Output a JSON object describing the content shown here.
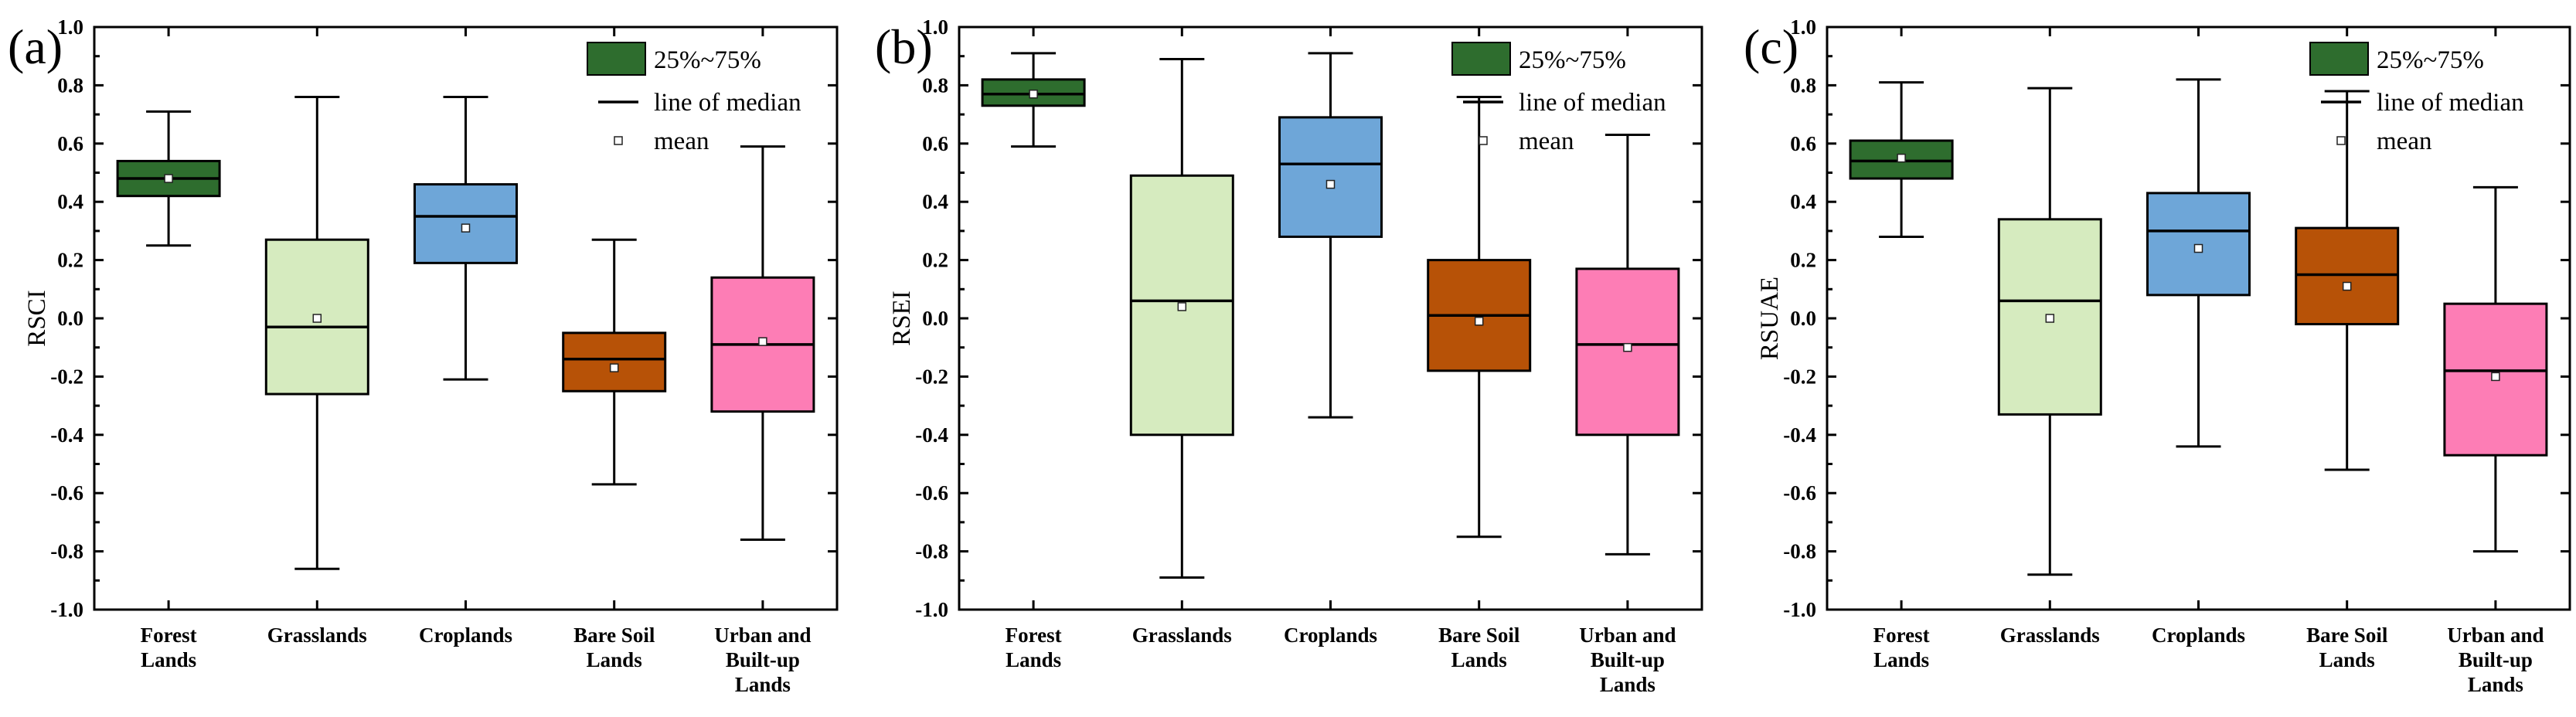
{
  "legend": {
    "box_label": "25%~75%",
    "median_label": "line of median",
    "mean_label": "mean"
  },
  "colors": {
    "Forest Lands": "#2e6d2e",
    "Grasslands": "#d6ebbf",
    "Croplands": "#6ea6d8",
    "Bare Soil Lands": "#b75207",
    "Urban and Built-up Lands": "#fd7db5"
  },
  "chart_data": [
    {
      "type": "box",
      "panel_label": "(a)",
      "ylabel": "RSCI",
      "ylim": [
        -1.0,
        1.0
      ],
      "yticks": [
        "-1.0",
        "-0.8",
        "-0.6",
        "-0.4",
        "-0.2",
        "0.0",
        "0.2",
        "0.4",
        "0.6",
        "0.8",
        "1.0"
      ],
      "categories": [
        [
          "Forest",
          "Lands"
        ],
        [
          "Grasslands"
        ],
        [
          "Croplands"
        ],
        [
          "Bare Soil",
          "Lands"
        ],
        [
          "Urban and",
          "Built-up",
          "Lands"
        ]
      ],
      "series": [
        {
          "name": "Forest Lands",
          "min": 0.25,
          "q1": 0.42,
          "median": 0.48,
          "q3": 0.54,
          "max": 0.71,
          "mean": 0.48
        },
        {
          "name": "Grasslands",
          "min": -0.86,
          "q1": -0.26,
          "median": -0.03,
          "q3": 0.27,
          "max": 0.76,
          "mean": 0.0
        },
        {
          "name": "Croplands",
          "min": -0.21,
          "q1": 0.19,
          "median": 0.35,
          "q3": 0.46,
          "max": 0.76,
          "mean": 0.31
        },
        {
          "name": "Bare Soil Lands",
          "min": -0.57,
          "q1": -0.25,
          "median": -0.14,
          "q3": -0.05,
          "max": 0.27,
          "mean": -0.17
        },
        {
          "name": "Urban and Built-up Lands",
          "min": -0.76,
          "q1": -0.32,
          "median": -0.09,
          "q3": 0.14,
          "max": 0.59,
          "mean": -0.08
        }
      ]
    },
    {
      "type": "box",
      "panel_label": "(b)",
      "ylabel": "RSEI",
      "ylim": [
        -1.0,
        1.0
      ],
      "yticks": [
        "-1.0",
        "-0.8",
        "-0.6",
        "-0.4",
        "-0.2",
        "0.0",
        "0.2",
        "0.4",
        "0.6",
        "0.8",
        "1.0"
      ],
      "categories": [
        [
          "Forest",
          "Lands"
        ],
        [
          "Grasslands"
        ],
        [
          "Croplands"
        ],
        [
          "Bare Soil",
          "Lands"
        ],
        [
          "Urban and",
          "Built-up",
          "Lands"
        ]
      ],
      "series": [
        {
          "name": "Forest Lands",
          "min": 0.59,
          "q1": 0.73,
          "median": 0.77,
          "q3": 0.82,
          "max": 0.91,
          "mean": 0.77
        },
        {
          "name": "Grasslands",
          "min": -0.89,
          "q1": -0.4,
          "median": 0.06,
          "q3": 0.49,
          "max": 0.89,
          "mean": 0.04
        },
        {
          "name": "Croplands",
          "min": -0.34,
          "q1": 0.28,
          "median": 0.53,
          "q3": 0.69,
          "max": 0.91,
          "mean": 0.46
        },
        {
          "name": "Bare Soil Lands",
          "min": -0.75,
          "q1": -0.18,
          "median": 0.01,
          "q3": 0.2,
          "max": 0.76,
          "mean": -0.01
        },
        {
          "name": "Urban and Built-up Lands",
          "min": -0.81,
          "q1": -0.4,
          "median": -0.09,
          "q3": 0.17,
          "max": 0.63,
          "mean": -0.1
        }
      ]
    },
    {
      "type": "box",
      "panel_label": "(c)",
      "ylabel": "RSUAE",
      "ylim": [
        -1.0,
        1.0
      ],
      "yticks": [
        "-1.0",
        "-0.8",
        "-0.6",
        "-0.4",
        "-0.2",
        "0.0",
        "0.2",
        "0.4",
        "0.6",
        "0.8",
        "1.0"
      ],
      "categories": [
        [
          "Forest",
          "Lands"
        ],
        [
          "Grasslands"
        ],
        [
          "Croplands"
        ],
        [
          "Bare Soil",
          "Lands"
        ],
        [
          "Urban and",
          "Built-up",
          "Lands"
        ]
      ],
      "series": [
        {
          "name": "Forest Lands",
          "min": 0.28,
          "q1": 0.48,
          "median": 0.54,
          "q3": 0.61,
          "max": 0.81,
          "mean": 0.55
        },
        {
          "name": "Grasslands",
          "min": -0.88,
          "q1": -0.33,
          "median": 0.06,
          "q3": 0.34,
          "max": 0.79,
          "mean": 0.0
        },
        {
          "name": "Croplands",
          "min": -0.44,
          "q1": 0.08,
          "median": 0.3,
          "q3": 0.43,
          "max": 0.82,
          "mean": 0.24
        },
        {
          "name": "Bare Soil Lands",
          "min": -0.52,
          "q1": -0.02,
          "median": 0.15,
          "q3": 0.31,
          "max": 0.78,
          "mean": 0.11
        },
        {
          "name": "Urban and Built-up Lands",
          "min": -0.8,
          "q1": -0.47,
          "median": -0.18,
          "q3": 0.05,
          "max": 0.45,
          "mean": -0.2
        }
      ]
    }
  ]
}
